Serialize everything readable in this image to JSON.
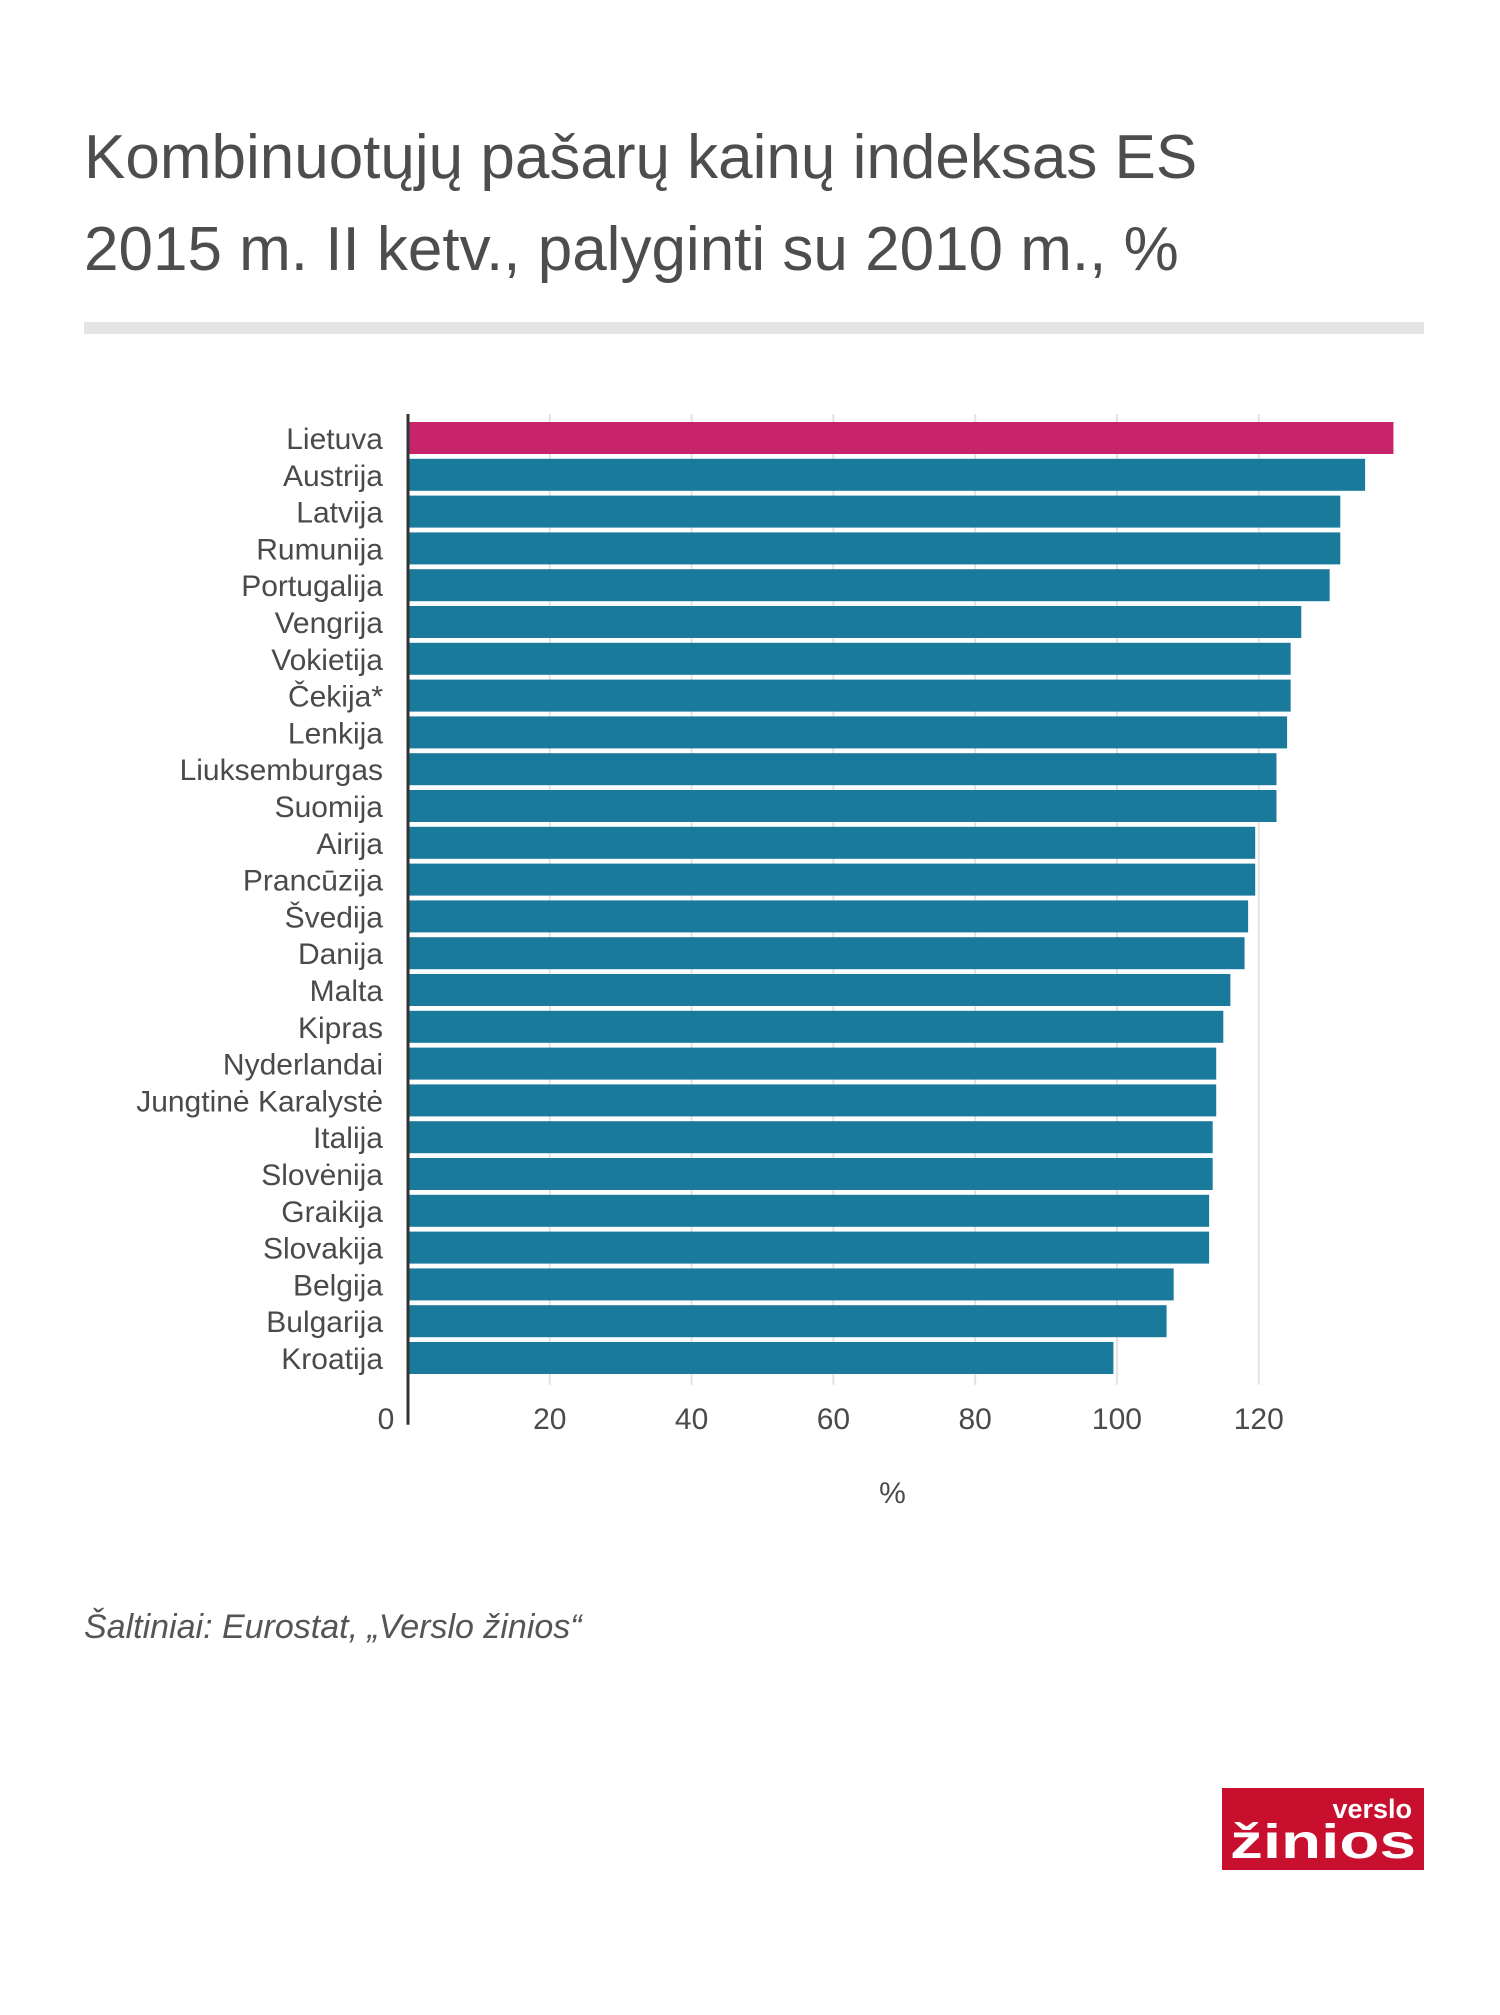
{
  "title": {
    "line1": "Kombinuotųjų pašarų kainų indeksas ES",
    "line2": "2015 m. II ketv., palyginti su 2010 m., %"
  },
  "source": "Šaltiniai: Eurostat, „Verslo žinios“",
  "logo": {
    "line1": "verslo",
    "line2": "žinios"
  },
  "colors": {
    "highlight": "#c8246b",
    "bar": "#1a7a9c",
    "axis": "#333333",
    "grid": "#e2e2e2",
    "logo": "#c8102e"
  },
  "chart_data": {
    "type": "bar",
    "orientation": "horizontal",
    "categories": [
      "Lietuva",
      "Austrija",
      "Latvija",
      "Rumunija",
      "Portugalija",
      "Vengrija",
      "Vokietija",
      "Čekija*",
      "Lenkija",
      "Liuksemburgas",
      "Suomija",
      "Airija",
      "Prancūzija",
      "Švedija",
      "Danija",
      "Malta",
      "Kipras",
      "Nyderlandai",
      "Jungtinė Karalystė",
      "Italija",
      "Slovėnija",
      "Graikija",
      "Slovakija",
      "Belgija",
      "Bulgarija",
      "Kroatija"
    ],
    "values": [
      139,
      135,
      131.5,
      131.5,
      130,
      126,
      124.5,
      124.5,
      124,
      122.5,
      122.5,
      119.5,
      119.5,
      118.5,
      118,
      116,
      115,
      114,
      114,
      113.5,
      113.5,
      113,
      113,
      108,
      107,
      99.5
    ],
    "highlight_index": 0,
    "xlim": [
      0,
      139.5
    ],
    "xticks": [
      0,
      20,
      40,
      60,
      80,
      100,
      120
    ],
    "xlabel": "%",
    "ylabel": "",
    "grid": "vertical"
  }
}
